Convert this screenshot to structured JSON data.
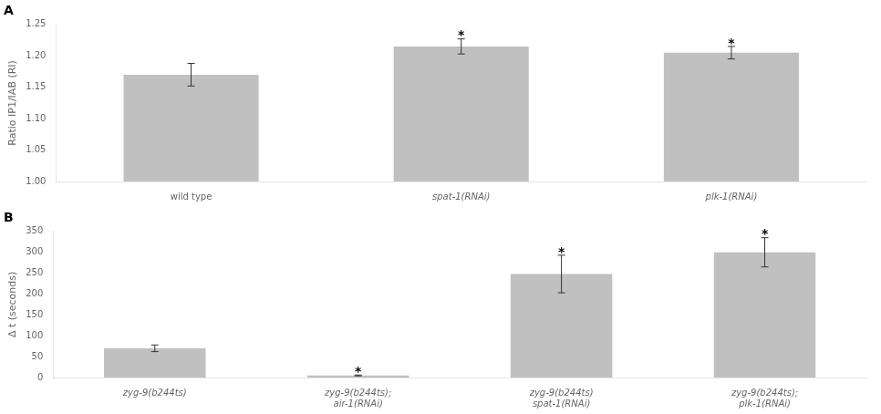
{
  "chart_data": [
    {
      "type": "bar",
      "title": "A",
      "categories": [
        "wild type",
        "spat-1(RNAi)",
        "plk-1(RNAi)"
      ],
      "values": [
        1.17,
        1.215,
        1.205
      ],
      "errors": [
        0.018,
        0.012,
        0.01
      ],
      "color": "#c0c0c0",
      "error_color": "#333333",
      "ylabel": "Ratio IP1/IAB (RI)",
      "ylim": [
        1.0,
        1.25
      ],
      "yticks": [
        {
          "value": 1.0,
          "label": "1.00"
        },
        1.05,
        {
          "value": 1.1,
          "label": "1.10"
        },
        1.15,
        {
          "value": 1.2,
          "label": "1.20"
        },
        1.25
      ],
      "grid": false,
      "annotations": [
        {
          "text": "*",
          "category": "spat-1(RNAi)"
        },
        {
          "text": "*",
          "category": "plk-1(RNAi)"
        }
      ]
    },
    {
      "type": "bar",
      "title": "B",
      "categories": [
        "zyg-9(b244ts)",
        "zyg-9(b244ts);\nair-1(RNAi)",
        "zyg-9(b244ts)\nspat-1(RNAi)",
        "zyg-9(b244ts);\nplk-1(RNAi)"
      ],
      "values": [
        70,
        5,
        248,
        300
      ],
      "errors": [
        8,
        1,
        45,
        35
      ],
      "color": "#c0c0c0",
      "error_color": "#333333",
      "ylabel": "Δ t (seconds)",
      "ylim": [
        0,
        350
      ],
      "yticks": [
        0,
        50,
        100,
        150,
        200,
        250,
        300,
        350
      ],
      "grid": false,
      "annotations": [
        {
          "text": "*",
          "category": "zyg-9(b244ts);\nair-1(RNAi)"
        },
        {
          "text": "*",
          "category": "zyg-9(b244ts)\nspat-1(RNAi)"
        },
        {
          "text": "*",
          "category": "zyg-9(b244ts);\nplk-1(RNAi)"
        }
      ]
    }
  ]
}
